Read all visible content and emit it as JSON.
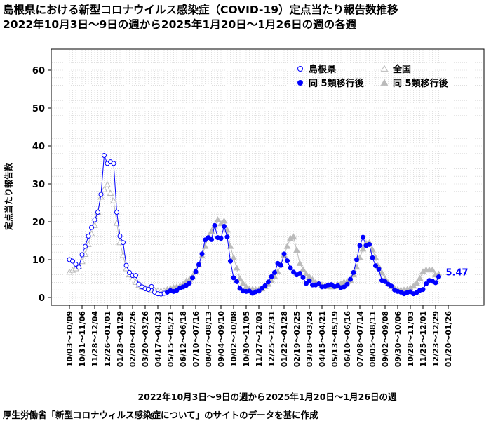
{
  "title_line1": "島根県における新型コロナウイルス感染症（COVID-19）定点当たり報告数推移",
  "title_line2": "2022年10月3日～9日の週から2025年1月20日～1月26日の週の各週",
  "xlabel": "2022年10月3日～9日の週から2025年1月20日～1月26日の週",
  "ylabel": "定点当たり報告数",
  "source": "厚生労働省「新型コロナウィルス感染症について」のサイトのデータを基に作成",
  "colors": {
    "shimane": "#0000ff",
    "national": "#bbbbbb",
    "grid": "#cccccc"
  },
  "chart_data": {
    "type": "line",
    "title": "島根県における新型コロナウイルス感染症（COVID-19）定点当たり報告数推移",
    "xlabel": "2022年10月3日～9日の週から2025年1月20日～1月26日の週",
    "ylabel": "定点当たり報告数",
    "ylim": [
      -2,
      65
    ],
    "yticks": [
      0,
      10,
      20,
      30,
      40,
      50,
      60
    ],
    "grid": true,
    "legend_position": "top-right",
    "legend": [
      {
        "label": "島根県",
        "marker": "open-circle",
        "color": "#0000ff"
      },
      {
        "label": "全国",
        "marker": "open-triangle",
        "color": "#bbbbbb"
      },
      {
        "label": "同 5類移行後",
        "marker": "filled-circle",
        "color": "#0000ff"
      },
      {
        "label": "同 5類移行後",
        "marker": "filled-triangle",
        "color": "#bbbbbb"
      }
    ],
    "x_tick_labels": [
      "10/03～10/09",
      "10/31～11/06",
      "11/28～12/04",
      "12/26～01/01",
      "01/23～01/29",
      "02/20～02/26",
      "03/20～03/26",
      "04/17～04/23",
      "05/15～05/21",
      "06/12～06/18",
      "07/10～07/16",
      "08/07～08/13",
      "09/04～09/10",
      "10/02～10/08",
      "10/30～11/05",
      "11/27～12/03",
      "12/25～12/31",
      "01/22～01/28",
      "02/19～02/25",
      "03/18～03/24",
      "04/15～04/21",
      "05/13～05/19",
      "06/10～06/16",
      "07/08～07/14",
      "08/05～08/11",
      "09/02～09/08",
      "09/30～10/06",
      "10/28～11/03",
      "11/25～12/01",
      "12/23～12/29",
      "01/20～01/26"
    ],
    "five_class_start_index": 31,
    "last_value_label": "5.47",
    "series": [
      {
        "name": "島根県",
        "values": [
          10.0,
          9.6,
          8.8,
          8.0,
          11.3,
          13.5,
          16.2,
          18.5,
          20.5,
          22.5,
          27.2,
          37.5,
          35.4,
          35.8,
          35.4,
          22.5,
          16.2,
          14.5,
          8.5,
          6.6,
          5.8,
          5.8,
          3.5,
          2.8,
          2.3,
          2.1,
          2.9,
          1.4,
          1.0,
          0.9,
          1.1,
          1.4,
          1.8,
          1.6,
          1.9,
          2.5,
          2.8,
          3.2,
          3.8,
          5.2,
          6.8,
          8.7,
          11.5,
          15.2,
          15.8,
          15.3,
          19.0,
          15.8,
          15.6,
          18.8,
          16.0,
          9.6,
          5.2,
          4.2,
          2.4,
          1.7,
          1.6,
          1.7,
          1.1,
          1.5,
          1.7,
          2.4,
          3.1,
          4.1,
          5.5,
          6.6,
          9.0,
          8.5,
          11.5,
          9.7,
          7.8,
          6.7,
          6.0,
          6.4,
          5.3,
          3.7,
          4.4,
          3.3,
          3.3,
          3.6,
          2.8,
          2.9,
          3.3,
          3.4,
          2.9,
          3.1,
          2.6,
          2.8,
          3.5,
          4.8,
          6.6,
          10.0,
          13.7,
          15.9,
          13.7,
          14.0,
          10.5,
          8.4,
          7.5,
          4.5,
          4.2,
          3.5,
          3.0,
          2.0,
          1.6,
          1.4,
          1.0,
          1.3,
          1.5,
          1.0,
          1.3,
          1.9,
          2.1,
          3.6,
          4.5,
          4.3,
          3.9,
          5.47
        ]
      },
      {
        "name": "全国",
        "values": [
          6.7,
          7.2,
          7.6,
          8.2,
          9.5,
          11.4,
          14.0,
          16.8,
          19.0,
          22.5,
          26.5,
          28.5,
          29.8,
          27.5,
          25.5,
          19.6,
          14.5,
          11.1,
          7.6,
          6.0,
          4.9,
          4.0,
          3.2,
          2.8,
          2.5,
          2.3,
          2.0,
          1.9,
          1.8,
          1.7,
          1.8,
          2.1,
          2.4,
          2.6,
          2.8,
          3.0,
          3.5,
          4.3,
          4.8,
          5.5,
          7.0,
          8.6,
          11.0,
          13.5,
          16.0,
          17.5,
          18.9,
          20.5,
          19.5,
          20.2,
          17.8,
          13.5,
          10.5,
          7.8,
          5.0,
          3.7,
          2.8,
          2.3,
          2.2,
          2.1,
          2.1,
          2.3,
          2.9,
          3.5,
          4.4,
          5.5,
          6.8,
          8.6,
          11.2,
          13.5,
          15.6,
          16.0,
          12.5,
          9.0,
          7.4,
          6.2,
          5.5,
          4.7,
          4.0,
          3.6,
          3.3,
          3.1,
          2.9,
          2.8,
          2.9,
          3.3,
          3.6,
          4.1,
          4.3,
          4.5,
          6.0,
          8.0,
          10.5,
          12.8,
          14.3,
          14.5,
          12.6,
          10.5,
          8.2,
          6.5,
          5.0,
          3.8,
          2.9,
          2.4,
          2.1,
          2.0,
          2.0,
          2.1,
          2.5,
          3.0,
          3.8,
          5.1,
          6.8,
          7.3,
          7.3,
          7.3,
          6.0,
          6.2
        ]
      }
    ]
  }
}
